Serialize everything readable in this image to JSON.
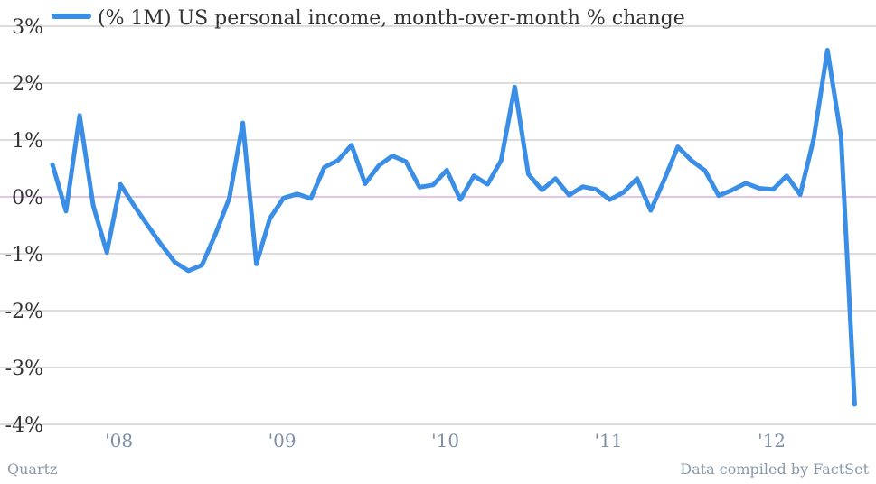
{
  "chart_data": {
    "type": "line",
    "series": [
      {
        "name": "(% 1M) US personal income, month-over-month % change",
        "x": [
          "2007-09",
          "2007-10",
          "2007-11",
          "2007-12",
          "2008-01",
          "2008-02",
          "2008-03",
          "2008-04",
          "2008-05",
          "2008-06",
          "2008-07",
          "2008-08",
          "2008-09",
          "2008-10",
          "2008-11",
          "2008-12",
          "2009-01",
          "2009-02",
          "2009-03",
          "2009-04",
          "2009-05",
          "2009-06",
          "2009-07",
          "2009-08",
          "2009-09",
          "2009-10",
          "2009-11",
          "2009-12",
          "2010-01",
          "2010-02",
          "2010-03",
          "2010-04",
          "2010-05",
          "2010-06",
          "2010-07",
          "2010-08",
          "2010-09",
          "2010-10",
          "2010-11",
          "2010-12",
          "2011-01",
          "2011-02",
          "2011-03",
          "2011-04",
          "2011-05",
          "2011-06",
          "2011-07",
          "2011-08",
          "2011-09",
          "2011-10",
          "2011-11",
          "2011-12",
          "2012-01",
          "2012-02",
          "2012-03",
          "2012-04",
          "2012-05",
          "2012-06",
          "2012-07",
          "2012-08"
        ],
        "values": [
          0.57,
          -0.25,
          1.43,
          -0.15,
          -0.98,
          0.22,
          -0.15,
          -0.5,
          -0.84,
          -1.15,
          -1.3,
          -1.2,
          -0.65,
          -0.03,
          1.3,
          -1.18,
          -0.38,
          -0.02,
          0.05,
          -0.03,
          0.52,
          0.64,
          0.91,
          0.23,
          0.55,
          0.72,
          0.62,
          0.17,
          0.21,
          0.47,
          -0.05,
          0.37,
          0.22,
          0.64,
          1.93,
          0.4,
          0.12,
          0.32,
          0.03,
          0.18,
          0.13,
          -0.05,
          0.08,
          0.32,
          -0.24,
          0.3,
          0.88,
          0.64,
          0.46,
          0.02,
          0.12,
          0.24,
          0.15,
          0.13,
          0.37,
          0.04,
          1.03,
          2.58,
          1.06,
          -3.65
        ],
        "color": "#3a8ee6"
      }
    ],
    "ylim": [
      -4,
      3
    ],
    "yticks": [
      3,
      2,
      1,
      0,
      -1,
      -2,
      -3,
      -4
    ],
    "ytick_labels": [
      "3%",
      "2%",
      "1%",
      "0%",
      "-1%",
      "-2%",
      "-3%",
      "-4%"
    ],
    "xtick_positions": [
      "2008-01",
      "2009-01",
      "2010-01",
      "2011-01",
      "2012-01"
    ],
    "xtick_labels": [
      "'08",
      "'09",
      "'10",
      "'11",
      "'12"
    ],
    "grid": true,
    "zero_line_color": "#c98bd0",
    "legend": {
      "label": "(% 1M) US personal income, month-over-month % change",
      "position": "top-left"
    }
  },
  "footer": {
    "source_left": "Quartz",
    "source_right": "Data compiled by FactSet"
  }
}
